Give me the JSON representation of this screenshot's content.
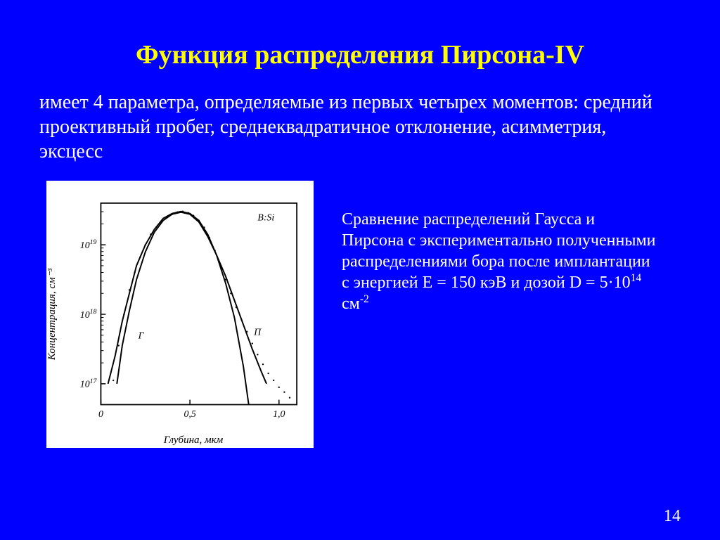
{
  "title": "Функция распределения  Пирсона-IV",
  "intro": "имеет 4 параметра, определяемые из первых четырех моментов: средний проективный пробег, среднеквадратичное отклонение, асимметрия, эксцесс",
  "caption_parts": {
    "pre": "Сравнение распределений Гаусса и Пирсона с экспериментально полученными распределениями бора после имплантации с энергией E = 150 кэВ и дозой D = 5·10",
    "exp1": "14",
    "mid": " см",
    "exp2": "-2"
  },
  "page_number": "14",
  "chart": {
    "type": "line-log",
    "species_label": "B:Si",
    "y_axis_label": "Концентрация, см⁻³",
    "x_axis_label": "Глубина, мкм",
    "y_scale": "log",
    "y_ticks_exp": [
      17,
      18,
      19
    ],
    "y_range_exp": [
      16.7,
      19.6
    ],
    "x_ticks": [
      0,
      0.5,
      1.0
    ],
    "x_range": [
      0,
      1.1
    ],
    "curve_labels": {
      "gauss": "Г",
      "pearson": "П"
    },
    "background_color": "#ffffff",
    "line_color": "#000000",
    "line_width": 2.0,
    "dot_color": "#000000",
    "dot_radius": 1.2,
    "frame_stroke": "#000000",
    "gauss_points": [
      [
        0.04,
        17.0
      ],
      [
        0.08,
        17.4
      ],
      [
        0.12,
        17.9
      ],
      [
        0.16,
        18.3
      ],
      [
        0.2,
        18.7
      ],
      [
        0.25,
        19.0
      ],
      [
        0.3,
        19.22
      ],
      [
        0.35,
        19.38
      ],
      [
        0.4,
        19.45
      ],
      [
        0.45,
        19.48
      ],
      [
        0.5,
        19.45
      ],
      [
        0.55,
        19.35
      ],
      [
        0.6,
        19.15
      ],
      [
        0.65,
        18.85
      ],
      [
        0.7,
        18.45
      ],
      [
        0.75,
        17.95
      ],
      [
        0.8,
        17.25
      ],
      [
        0.83,
        16.7
      ]
    ],
    "pearson_points": [
      [
        0.09,
        17.0
      ],
      [
        0.12,
        17.55
      ],
      [
        0.16,
        18.05
      ],
      [
        0.2,
        18.5
      ],
      [
        0.25,
        18.9
      ],
      [
        0.3,
        19.18
      ],
      [
        0.35,
        19.35
      ],
      [
        0.4,
        19.44
      ],
      [
        0.45,
        19.47
      ],
      [
        0.5,
        19.44
      ],
      [
        0.55,
        19.33
      ],
      [
        0.6,
        19.12
      ],
      [
        0.65,
        18.85
      ],
      [
        0.7,
        18.55
      ],
      [
        0.75,
        18.2
      ],
      [
        0.8,
        17.85
      ],
      [
        0.85,
        17.5
      ],
      [
        0.9,
        17.18
      ],
      [
        0.93,
        17.0
      ]
    ],
    "exp_points": [
      [
        0.07,
        17.05
      ],
      [
        0.1,
        17.55
      ],
      [
        0.13,
        18.0
      ],
      [
        0.16,
        18.35
      ],
      [
        0.19,
        18.6
      ],
      [
        0.22,
        18.82
      ],
      [
        0.25,
        19.0
      ],
      [
        0.28,
        19.15
      ],
      [
        0.31,
        19.25
      ],
      [
        0.34,
        19.33
      ],
      [
        0.37,
        19.4
      ],
      [
        0.4,
        19.44
      ],
      [
        0.43,
        19.47
      ],
      [
        0.46,
        19.48
      ],
      [
        0.49,
        19.46
      ],
      [
        0.52,
        19.42
      ],
      [
        0.55,
        19.35
      ],
      [
        0.58,
        19.25
      ],
      [
        0.61,
        19.1
      ],
      [
        0.64,
        18.92
      ],
      [
        0.67,
        18.72
      ],
      [
        0.7,
        18.5
      ],
      [
        0.73,
        18.3
      ],
      [
        0.76,
        18.1
      ],
      [
        0.79,
        17.92
      ],
      [
        0.82,
        17.75
      ],
      [
        0.85,
        17.58
      ],
      [
        0.88,
        17.42
      ],
      [
        0.91,
        17.28
      ],
      [
        0.94,
        17.15
      ],
      [
        0.97,
        17.05
      ],
      [
        1.0,
        16.95
      ],
      [
        1.03,
        16.88
      ],
      [
        1.06,
        16.8
      ]
    ]
  }
}
